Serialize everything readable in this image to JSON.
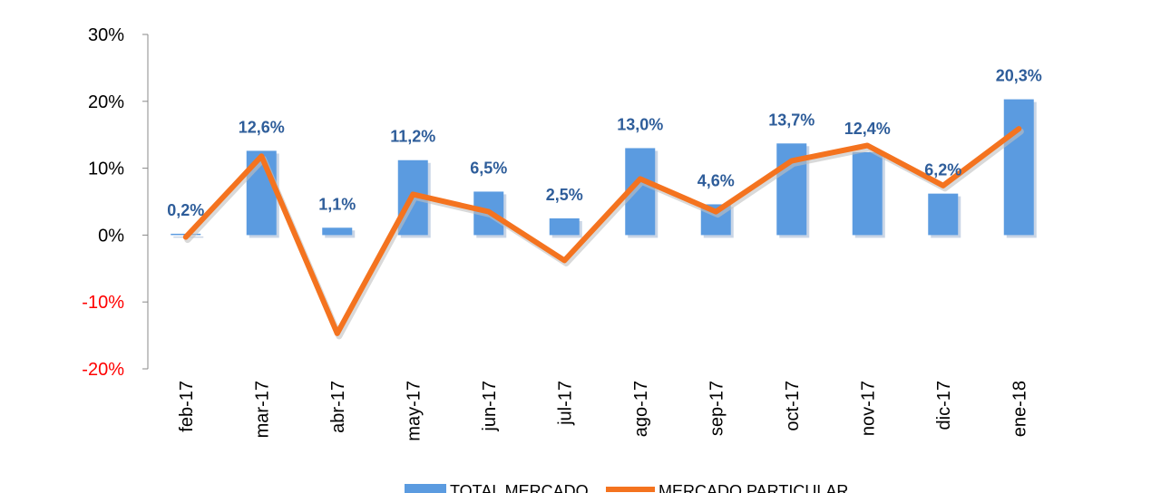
{
  "chart_data": {
    "type": "bar",
    "categories": [
      "feb-17",
      "mar-17",
      "abr-17",
      "may-17",
      "jun-17",
      "jul-17",
      "ago-17",
      "sep-17",
      "oct-17",
      "nov-17",
      "dic-17",
      "ene-18"
    ],
    "series": [
      {
        "name": "TOTAL MERCADO",
        "type": "bar",
        "color": "#5b9be0",
        "values": [
          0.2,
          12.6,
          1.1,
          11.2,
          6.5,
          2.5,
          13.0,
          4.6,
          13.7,
          12.4,
          6.2,
          20.3
        ],
        "labels": [
          "0,2%",
          "12,6%",
          "1,1%",
          "11,2%",
          "6,5%",
          "2,5%",
          "13,0%",
          "4,6%",
          "13,7%",
          "12,4%",
          "6,2%",
          "20,3%"
        ]
      },
      {
        "name": "MERCADO PARTICULAR",
        "type": "line",
        "color": "#f4731f",
        "values": [
          -0.3,
          11.8,
          -14.7,
          6.1,
          3.5,
          -3.8,
          8.4,
          3.5,
          11.1,
          13.4,
          7.4,
          15.9
        ]
      }
    ],
    "ylim": [
      -20,
      30
    ],
    "yticks": [
      30,
      20,
      10,
      0,
      -10,
      -20
    ],
    "ytick_labels": [
      "30%",
      "20%",
      "10%",
      "0%",
      "-10%",
      "-20%"
    ],
    "negative_tick_color": "#ff0000",
    "label_color": "#2e5d9a",
    "title": "",
    "xlabel": "",
    "ylabel": "",
    "legend": "bottom"
  }
}
